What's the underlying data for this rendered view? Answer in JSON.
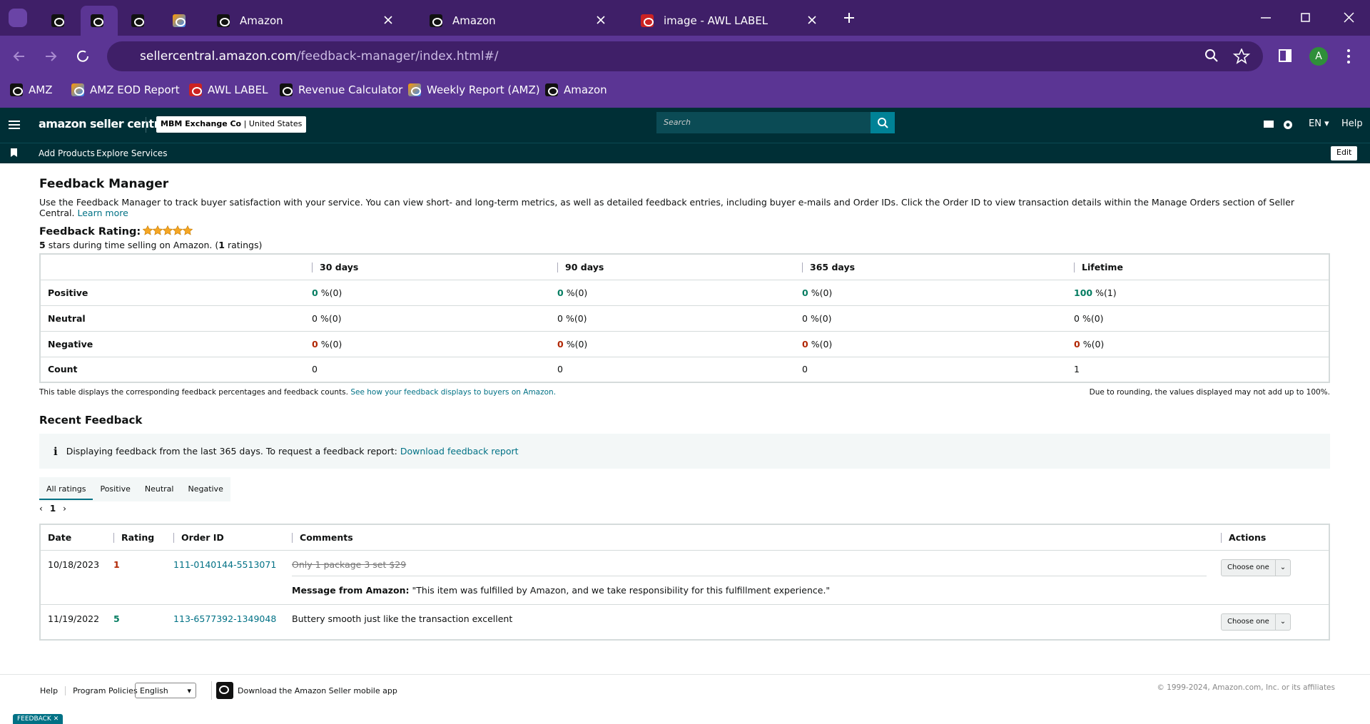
{
  "browser": {
    "tabs": [
      "Amazon",
      "Amazon",
      "image - AWL LABEL"
    ],
    "url_host": "sellercentral.amazon.com",
    "url_path": "/feedback-manager/index.html#/",
    "profile": "A",
    "bookmarks": [
      "AMZ",
      "AMZ EOD Report",
      "AWL LABEL",
      "Revenue Calculator",
      "Weekly Report (AMZ)",
      "Amazon"
    ]
  },
  "header": {
    "logo": "amazon seller central",
    "account": "MBM Exchange Co",
    "marketplace": "United States",
    "search_placeholder": "Search",
    "language": "EN",
    "help": "Help"
  },
  "nav": {
    "links": [
      "Add Products",
      "Explore Services"
    ],
    "edit": "Edit"
  },
  "summary": {
    "title": "Feedback Manager",
    "intro": "Use the Feedback Manager to track buyer satisfaction with your service. You can view short- and long-term metrics, as well as detailed feedback entries, including buyer e-mails and Order IDs. Click the Order ID to view transaction details within the Manage Orders section of Seller Central.",
    "learn_more": "Learn more",
    "rating_label": "Feedback Rating:",
    "stars": 5,
    "stars_text": "stars during time selling on Amazon. (",
    "ratings_count": 1,
    "ratings_text": "ratings)",
    "table": {
      "columns": [
        "30 days",
        "90 days",
        "365 days",
        "Lifetime"
      ],
      "rows": [
        {
          "label": "Positive",
          "tone": "positive",
          "cells": [
            {
              "value": 0,
              "rest": "%(0)"
            },
            {
              "value": 0,
              "rest": "%(0)"
            },
            {
              "value": 0,
              "rest": "%(0)"
            },
            {
              "value": 100,
              "rest": "%(1)"
            }
          ]
        },
        {
          "label": "Neutral",
          "tone": "neutral",
          "cells": [
            {
              "value": 0,
              "rest": "%(0)"
            },
            {
              "value": 0,
              "rest": "%(0)"
            },
            {
              "value": 0,
              "rest": "%(0)"
            },
            {
              "value": 0,
              "rest": "%(0)"
            }
          ]
        },
        {
          "label": "Negative",
          "tone": "negative",
          "cells": [
            {
              "value": 0,
              "rest": "%(0)"
            },
            {
              "value": 0,
              "rest": "%(0)"
            },
            {
              "value": 0,
              "rest": "%(0)"
            },
            {
              "value": 0,
              "rest": "%(0)"
            }
          ]
        }
      ],
      "count_label": "Count",
      "counts": [
        0,
        0,
        0,
        1
      ]
    },
    "note": "This table displays the corresponding feedback percentages and feedback counts.",
    "note_link": "See how your feedback displays to buyers on Amazon.",
    "rounding_note": "Due to rounding, the values displayed may not add up to 100%."
  },
  "recent": {
    "title": "Recent Feedback",
    "info": "Displaying feedback from the last 365 days. To request a feedback report:",
    "info_link": "Download feedback report",
    "tabs": [
      "All ratings",
      "Positive",
      "Neutral",
      "Negative"
    ],
    "page": 1,
    "headers": [
      "Date",
      "Rating",
      "Order ID",
      "Comments",
      "Actions"
    ],
    "rows": [
      {
        "date": "10/18/2023",
        "rating": 1,
        "order_id": "111-0140144-5513071",
        "comment": "Only 1 package 3 set $29",
        "struck": true,
        "response_label": "Message from Amazon:",
        "response": "\"This item was fulfilled by Amazon, and we take responsibility for this fulfillment experience.\"",
        "action": "Choose one"
      },
      {
        "date": "11/19/2022",
        "rating": 5,
        "order_id": "113-6577392-1349048",
        "comment": "Buttery smooth just like the transaction excellent",
        "struck": false,
        "action": "Choose one"
      }
    ]
  },
  "footer": {
    "links": [
      "Help",
      "Program Policies"
    ],
    "language": "English",
    "app": "Download the Amazon Seller mobile app",
    "copyright": "© 1999-2024, Amazon.com, Inc. or its affiliates",
    "feedback_button": "FEEDBACK"
  }
}
